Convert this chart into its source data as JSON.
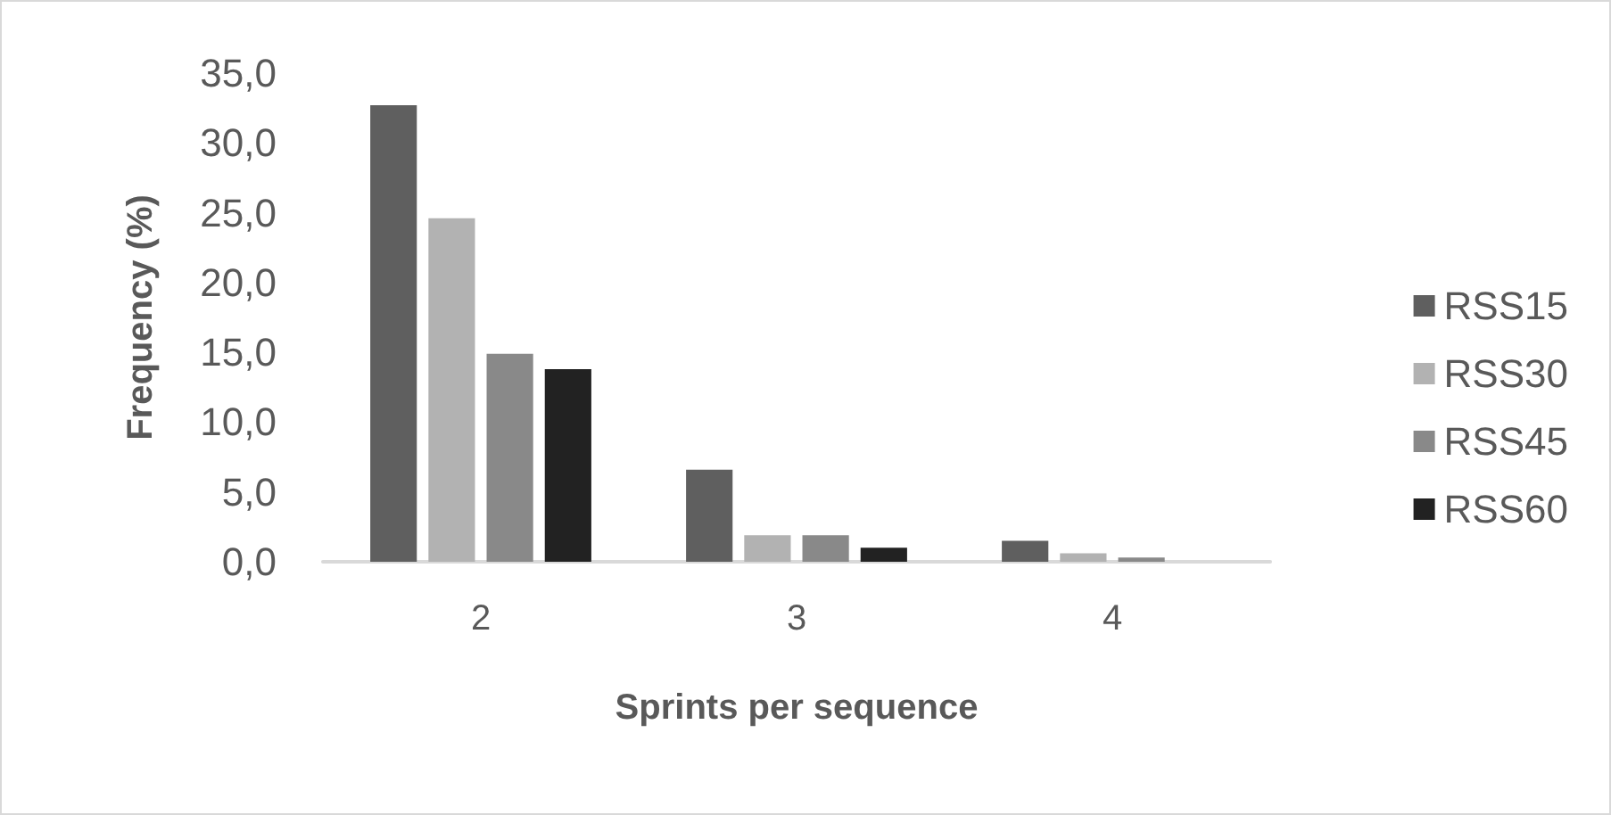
{
  "chart_data": {
    "type": "bar",
    "xlabel": "Sprints per sequence",
    "ylabel": "Frequency (%)",
    "categories": [
      "2",
      "3",
      "4"
    ],
    "series": [
      {
        "name": "RSS15",
        "color": "#5f5f5f",
        "values": [
          32.7,
          6.6,
          1.5
        ]
      },
      {
        "name": "RSS30",
        "color": "#b2b2b2",
        "values": [
          24.6,
          1.9,
          0.6
        ]
      },
      {
        "name": "RSS45",
        "color": "#898989",
        "values": [
          14.9,
          1.9,
          0.3
        ]
      },
      {
        "name": "RSS60",
        "color": "#222222",
        "values": [
          13.8,
          1.0,
          0
        ]
      }
    ],
    "ylim": [
      0,
      35
    ],
    "yticks": [
      {
        "value": 0,
        "label": "0,0"
      },
      {
        "value": 5,
        "label": "5,0"
      },
      {
        "value": 10,
        "label": "10,0"
      },
      {
        "value": 15,
        "label": "15,0"
      },
      {
        "value": 20,
        "label": "20,0"
      },
      {
        "value": 25,
        "label": "25,0"
      },
      {
        "value": 30,
        "label": "30,0"
      },
      {
        "value": 35,
        "label": "35,0"
      }
    ],
    "grid": false,
    "legend": "right"
  }
}
